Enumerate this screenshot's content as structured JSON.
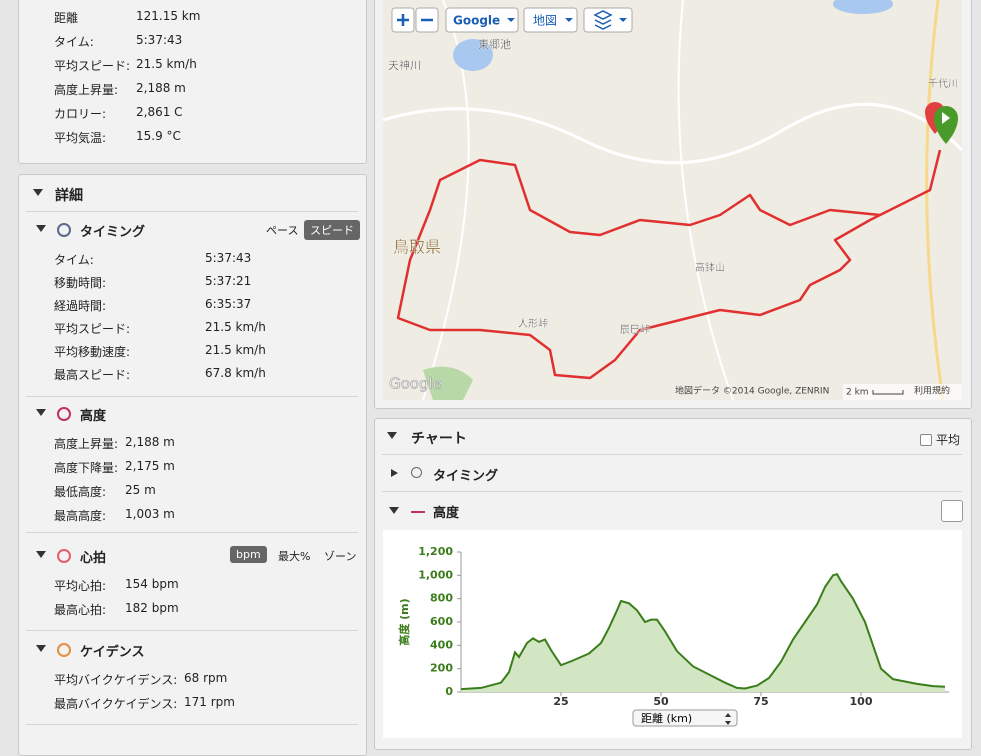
{
  "summary": {
    "rows": [
      {
        "label": "距離",
        "value": "121.15 km"
      },
      {
        "label": "タイム:",
        "value": "5:37:43"
      },
      {
        "label": "平均スピード:",
        "value": "21.5 km/h"
      },
      {
        "label": "高度上昇量:",
        "value": "2,188 m"
      },
      {
        "label": "カロリー:",
        "value": "2,861 C"
      },
      {
        "label": "平均気温:",
        "value": "15.9 °C"
      }
    ]
  },
  "details": {
    "title": "詳細",
    "sections": [
      {
        "title": "タイミング",
        "tabs": [
          "ペース",
          "スピード"
        ],
        "rows": [
          {
            "label": "タイム:",
            "value": "5:37:43"
          },
          {
            "label": "移動時間:",
            "value": "5:37:21"
          },
          {
            "label": "経過時間:",
            "value": "6:35:37"
          },
          {
            "label": "平均スピード:",
            "value": "21.5 km/h"
          },
          {
            "label": "平均移動速度:",
            "value": "21.5 km/h"
          },
          {
            "label": "最高スピード:",
            "value": "67.8 km/h"
          }
        ]
      },
      {
        "title": "高度",
        "rows": [
          {
            "label": "高度上昇量:",
            "value": "2,188 m"
          },
          {
            "label": "高度下降量:",
            "value": "2,175 m"
          },
          {
            "label": "最低高度:",
            "value": "25 m"
          },
          {
            "label": "最高高度:",
            "value": "1,003 m"
          }
        ]
      },
      {
        "title": "心拍",
        "tabs": [
          "bpm",
          "最大%",
          "ゾーン"
        ],
        "rows": [
          {
            "label": "平均心拍:",
            "value": "154 bpm"
          },
          {
            "label": "最高心拍:",
            "value": "182 bpm"
          }
        ]
      },
      {
        "title": "ケイデンス",
        "rows": [
          {
            "label": "平均バイクケイデンス:",
            "value": "68 rpm"
          },
          {
            "label": "最高バイクケイデンス:",
            "value": "171 rpm"
          }
        ]
      }
    ]
  },
  "map": {
    "buttons": [
      "Google",
      "地図"
    ],
    "labels": [
      "東郷池",
      "天神川",
      "鳥取県",
      "高鉢山",
      "人形峠",
      "辰巳峠",
      "千代川"
    ],
    "attribution": "地図データ ©2014 Google, ZENRIN",
    "scale": "2 km",
    "terms": "利用規約",
    "logo": "Google"
  },
  "charts_panel": {
    "title": "チャート",
    "average": "平均",
    "sections": [
      "タイミング",
      "高度"
    ]
  },
  "chart_data": {
    "type": "area",
    "x_label": "距離 (km)",
    "y_label": "高度 (m)",
    "color": "#3a7d1a",
    "fill": "#d3e6c4",
    "x": [
      0,
      5,
      10,
      12,
      13.5,
      14.5,
      16.5,
      18,
      19.5,
      21,
      22.5,
      25,
      28,
      32,
      35,
      37,
      39,
      40,
      42,
      44,
      46,
      47.5,
      49,
      51,
      54,
      58,
      62,
      66,
      69,
      71,
      74,
      77,
      80,
      83,
      86,
      89,
      91,
      93,
      94,
      95,
      98,
      101,
      103,
      105,
      108,
      111,
      114,
      118,
      121
    ],
    "values": [
      25,
      35,
      80,
      170,
      340,
      300,
      420,
      460,
      430,
      450,
      360,
      230,
      270,
      330,
      420,
      550,
      700,
      780,
      760,
      700,
      600,
      620,
      620,
      520,
      350,
      220,
      150,
      80,
      35,
      30,
      55,
      120,
      260,
      450,
      600,
      750,
      900,
      1000,
      1010,
      950,
      800,
      600,
      400,
      200,
      110,
      90,
      70,
      50,
      45
    ],
    "xlim": [
      0,
      122
    ],
    "ylim": [
      0,
      1200
    ],
    "xticks": [
      25,
      50,
      75,
      100
    ],
    "yticks": [
      0,
      200,
      400,
      600,
      800,
      {
        "value": 1000,
        "label": "1,000"
      },
      {
        "value": 1200,
        "label": "1,200"
      }
    ],
    "grid": false
  }
}
